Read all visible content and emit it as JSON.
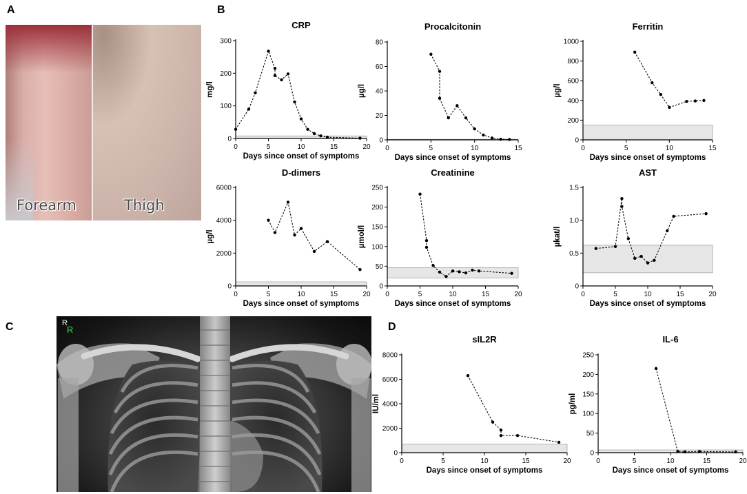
{
  "panels": {
    "a": "A",
    "b": "B",
    "c": "C",
    "d": "D"
  },
  "photos": {
    "forearm_label": "Forearm",
    "thigh_label": "Thigh"
  },
  "xray": {
    "marker_white": "R",
    "marker_green": "R",
    "marker_green_color": "#39d44a"
  },
  "chart_data": [
    {
      "id": "crp",
      "type": "line",
      "title": "CRP",
      "xlabel": "Days since onset of symptoms",
      "ylabel": "mg/l",
      "xlim": [
        0,
        20
      ],
      "ylim": [
        0,
        300
      ],
      "xticks": [
        0,
        5,
        10,
        15,
        20
      ],
      "yticks": [
        0,
        100,
        200,
        300
      ],
      "reference_range": [
        0,
        8
      ],
      "x": [
        0,
        2,
        3,
        5,
        6,
        6,
        7,
        8,
        9,
        10,
        11,
        12,
        13,
        14,
        19
      ],
      "y": [
        28,
        90,
        140,
        268,
        215,
        193,
        180,
        198,
        112,
        60,
        28,
        15,
        8,
        4,
        1
      ]
    },
    {
      "id": "procalcitonin",
      "type": "line",
      "title": "Procalcitonin",
      "xlabel": "Days since onset of symptoms",
      "ylabel": "µg/l",
      "xlim": [
        0,
        15
      ],
      "ylim": [
        0,
        80
      ],
      "xticks": [
        0,
        5,
        10,
        15
      ],
      "yticks": [
        0,
        20,
        40,
        60,
        80
      ],
      "reference_range": [
        0,
        0.5
      ],
      "x": [
        5,
        6,
        6,
        7,
        8,
        9,
        10,
        11,
        12,
        13,
        14
      ],
      "y": [
        70,
        56,
        34,
        18,
        28,
        18,
        9,
        4,
        1.5,
        0.5,
        0.3
      ]
    },
    {
      "id": "ferritin",
      "type": "line",
      "title": "Ferritin",
      "xlabel": "Days since onset of symptoms",
      "ylabel": "µg/l",
      "xlim": [
        0,
        15
      ],
      "ylim": [
        0,
        1000
      ],
      "xticks": [
        0,
        5,
        10,
        15
      ],
      "yticks": [
        0,
        200,
        400,
        600,
        800,
        1000
      ],
      "reference_range": [
        0,
        150
      ],
      "x": [
        6,
        8,
        9,
        10,
        12,
        13,
        14
      ],
      "y": [
        890,
        580,
        460,
        330,
        390,
        395,
        400
      ]
    },
    {
      "id": "ddimers",
      "type": "line",
      "title": "D-dimers",
      "xlabel": "Days since onset of symptoms",
      "ylabel": "µg/l",
      "xlim": [
        0,
        20
      ],
      "ylim": [
        0,
        6000
      ],
      "xticks": [
        0,
        5,
        10,
        15,
        20
      ],
      "yticks": [
        0,
        2000,
        4000,
        6000
      ],
      "reference_range": [
        0,
        250
      ],
      "x": [
        5,
        6,
        8,
        9,
        10,
        12,
        14,
        19
      ],
      "y": [
        4000,
        3250,
        5100,
        3100,
        3500,
        2100,
        2700,
        1000
      ]
    },
    {
      "id": "creatinine",
      "type": "line",
      "title": "Creatinine",
      "xlabel": "Days since onset of symptoms",
      "ylabel": "µmol/l",
      "xlim": [
        0,
        20
      ],
      "ylim": [
        0,
        250
      ],
      "xticks": [
        0,
        5,
        10,
        15,
        20
      ],
      "yticks": [
        0,
        50,
        100,
        150,
        200,
        250
      ],
      "reference_range": [
        20,
        46
      ],
      "x": [
        5,
        6,
        6,
        7,
        8,
        9,
        10,
        11,
        12,
        13,
        14,
        19
      ],
      "y": [
        233,
        115,
        98,
        52,
        35,
        24,
        38,
        36,
        33,
        40,
        38,
        32
      ]
    },
    {
      "id": "ast",
      "type": "line",
      "title": "AST",
      "xlabel": "Days since onset of symptoms",
      "ylabel": "µkat/l",
      "xlim": [
        0,
        20
      ],
      "ylim": [
        0,
        1.5
      ],
      "xticks": [
        0,
        5,
        10,
        15,
        20
      ],
      "yticks": [
        0,
        0.5,
        1.0,
        1.5
      ],
      "ytick_labels": [
        "0",
        "0.5",
        "1.0",
        "1.5"
      ],
      "reference_range": [
        0.2,
        0.62
      ],
      "x": [
        2,
        5,
        6,
        6,
        7,
        8,
        9,
        10,
        11,
        13,
        14,
        19
      ],
      "y": [
        0.57,
        0.6,
        1.33,
        1.21,
        0.72,
        0.42,
        0.45,
        0.35,
        0.39,
        0.84,
        1.06,
        1.1
      ]
    },
    {
      "id": "sil2r",
      "type": "line",
      "title": "sIL2R",
      "xlabel": "Days since onset of symptoms",
      "ylabel": "IU/ml",
      "xlim": [
        0,
        20
      ],
      "ylim": [
        0,
        8000
      ],
      "xticks": [
        0,
        5,
        10,
        15,
        20
      ],
      "yticks": [
        0,
        2000,
        4000,
        6000,
        8000
      ],
      "reference_range": [
        0,
        700
      ],
      "x": [
        8,
        11,
        12,
        12,
        14,
        19
      ],
      "y": [
        6300,
        2500,
        1850,
        1400,
        1400,
        850
      ]
    },
    {
      "id": "il6",
      "type": "line",
      "title": "IL-6",
      "xlabel": "Days since onset of symptoms",
      "ylabel": "pg/ml",
      "xlim": [
        0,
        20
      ],
      "ylim": [
        0,
        250
      ],
      "xticks": [
        0,
        5,
        10,
        15,
        20
      ],
      "yticks": [
        0,
        50,
        100,
        150,
        200,
        250
      ],
      "reference_range": [
        0,
        7
      ],
      "x": [
        8,
        11,
        12,
        14,
        19
      ],
      "y": [
        215,
        3,
        2,
        3,
        2
      ]
    }
  ]
}
